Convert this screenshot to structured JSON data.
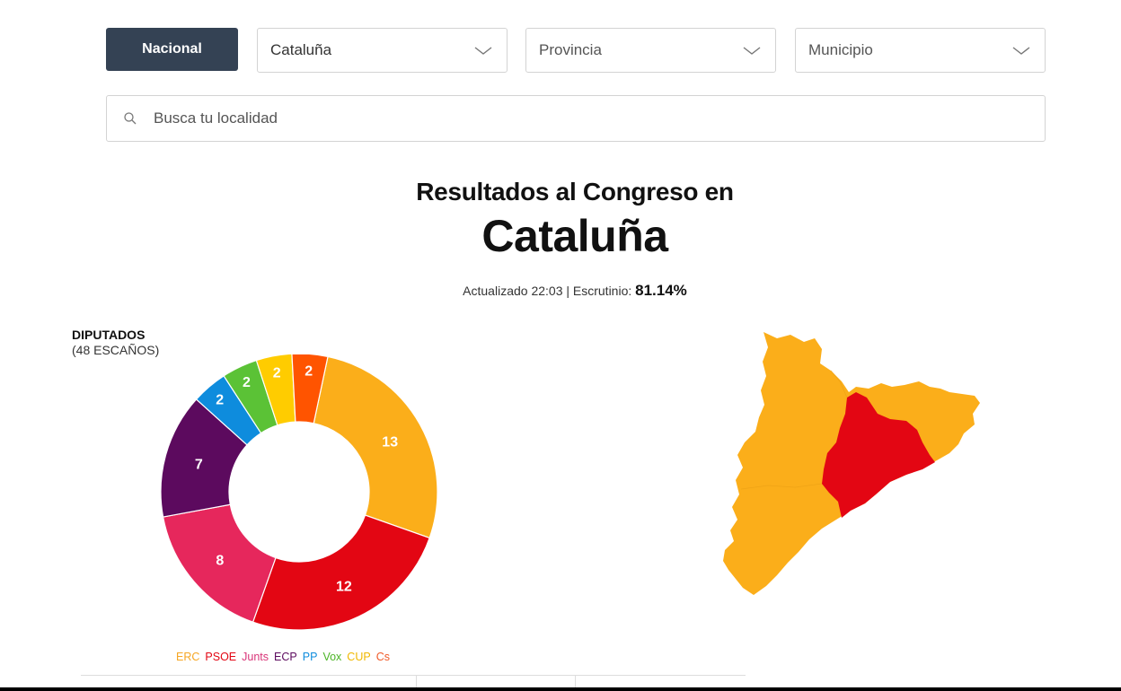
{
  "filters": {
    "nacional_label": "Nacional",
    "region": "Cataluña",
    "provincia_placeholder": "Provincia",
    "municipio_placeholder": "Municipio"
  },
  "search": {
    "placeholder": "Busca tu localidad"
  },
  "heading": {
    "line1": "Resultados al Congreso en",
    "line2": "Cataluña"
  },
  "updated": {
    "prefix": "Actualizado 22:03 | Escrutinio: ",
    "value": "81.14%"
  },
  "seats": {
    "label": "DIPUTADOS",
    "sub": "(48 ESCAÑOS)"
  },
  "chart_data": {
    "type": "pie",
    "title": "",
    "categories": [
      "ERC",
      "PSOE",
      "Junts",
      "ECP",
      "PP",
      "Vox",
      "CUP",
      "Cs"
    ],
    "values": [
      13,
      12,
      8,
      7,
      2,
      2,
      2,
      2
    ],
    "colors": [
      "#FBAE1A",
      "#E30613",
      "#E6275C",
      "#5C0A5E",
      "#0E8CDD",
      "#5BC236",
      "#FFCC00",
      "#FF5400"
    ],
    "legend_colors": [
      "#F6A623",
      "#E30613",
      "#D93478",
      "#5C0A5E",
      "#0E8CDD",
      "#4CB527",
      "#F0B800",
      "#F05A28"
    ],
    "legend": "bottom"
  },
  "map": {
    "province_colors": [
      "#FBAE1A",
      "#E30613"
    ]
  }
}
